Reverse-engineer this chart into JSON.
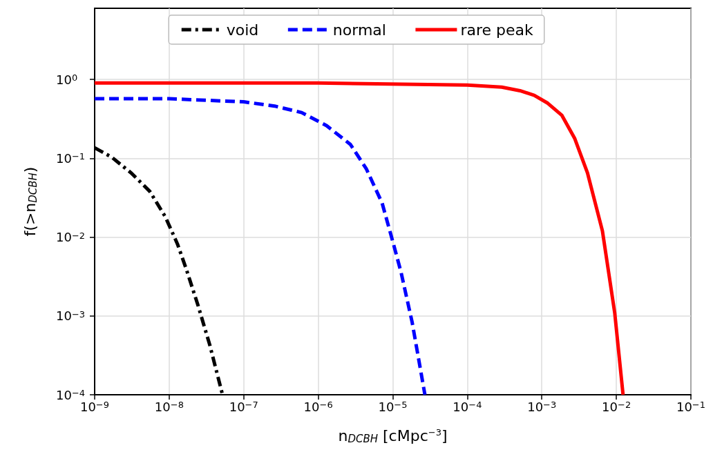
{
  "chart_data": {
    "type": "line",
    "xlabel": "n$_{DCBH}$ [cMpc$^{−3}$]",
    "ylabel": "f(>n$_{DCBH}$)",
    "log": "xy",
    "grid": true,
    "legend": "top",
    "marker": "none",
    "xlim": [
      1e-09,
      0.1
    ],
    "ylim": [
      0.0001,
      8
    ],
    "xticks": [
      {
        "value": 1e-09,
        "label": "10$^{−9}$"
      },
      {
        "value": 1e-08,
        "label": "10$^{−8}$"
      },
      {
        "value": 1e-07,
        "label": "10$^{−7}$"
      },
      {
        "value": 1e-06,
        "label": "10$^{−6}$"
      },
      {
        "value": 1e-05,
        "label": "10$^{−5}$"
      },
      {
        "value": 0.0001,
        "label": "10$^{−4}$"
      },
      {
        "value": 0.001,
        "label": "10$^{−3}$"
      },
      {
        "value": 0.01,
        "label": "10$^{−2}$"
      },
      {
        "value": 0.1,
        "label": "10$^{−1}$"
      }
    ],
    "yticks": [
      {
        "value": 0.0001,
        "label": "10$^{−4}$"
      },
      {
        "value": 0.001,
        "label": "10$^{−3}$"
      },
      {
        "value": 0.01,
        "label": "10$^{−2}$"
      },
      {
        "value": 0.1,
        "label": "10$^{−1}$"
      },
      {
        "value": 1,
        "label": "10$^{0}$"
      }
    ],
    "series": [
      {
        "name": "void",
        "color": "#000000",
        "line_style": "dashdot",
        "x": [
          1e-09,
          1.7e-09,
          3.1e-09,
          5.5e-09,
          8.9e-09,
          1.29e-08,
          1.7e-08,
          2.45e-08,
          3.5e-08,
          5.2e-08
        ],
        "values": [
          0.136,
          0.103,
          0.065,
          0.038,
          0.018,
          0.0082,
          0.0039,
          0.00134,
          0.00043,
          0.0001
        ]
      },
      {
        "name": "normal",
        "color": "#0000ff",
        "line_style": "dashed",
        "x": [
          1e-09,
          1e-08,
          1e-07,
          2.6e-07,
          6e-07,
          1.29e-06,
          2.7e-06,
          4.4e-06,
          7.2e-06,
          1.02e-05,
          1.29e-05,
          1.82e-05,
          2.7e-05
        ],
        "values": [
          0.57,
          0.57,
          0.52,
          0.46,
          0.38,
          0.26,
          0.15,
          0.074,
          0.027,
          0.0082,
          0.0036,
          0.00083,
          0.0001
        ]
      },
      {
        "name": "rare peak",
        "color": "#ff0000",
        "line_style": "solid",
        "x": [
          1e-09,
          1e-06,
          0.0001,
          0.00029,
          0.00051,
          0.00079,
          0.0012,
          0.00186,
          0.00275,
          0.0041,
          0.0065,
          0.0095,
          0.0123
        ],
        "values": [
          0.9,
          0.9,
          0.85,
          0.8,
          0.72,
          0.63,
          0.5,
          0.35,
          0.18,
          0.065,
          0.012,
          0.0011,
          0.0001
        ]
      }
    ]
  }
}
